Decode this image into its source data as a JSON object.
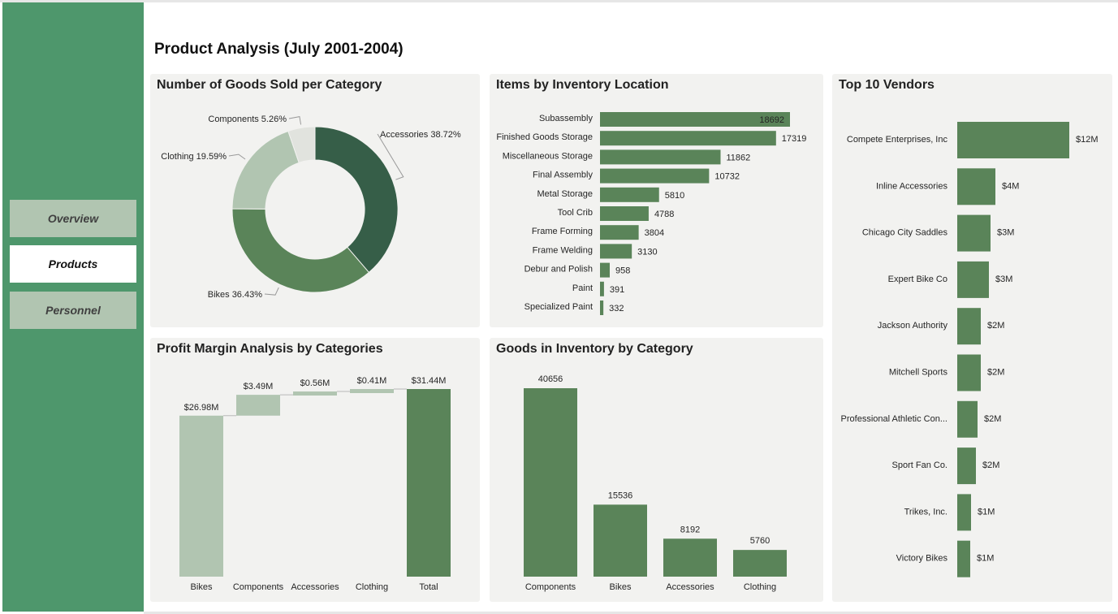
{
  "page": {
    "title": "Product Analysis (July 2001-2004)"
  },
  "nav": {
    "items": [
      {
        "label": "Overview",
        "active": false
      },
      {
        "label": "Products",
        "active": true
      },
      {
        "label": "Personnel",
        "active": false
      }
    ]
  },
  "colors": {
    "sidebar": "#4e976c",
    "bar": "#5a8459",
    "bar_light": "#b1c5b1",
    "donut_dark": "#365e48",
    "donut_mid": "#5a8459",
    "donut_light": "#b1c5b1",
    "donut_pale": "#e1e3de",
    "card_bg": "#f2f2f0"
  },
  "chart_data": [
    {
      "id": "goods_sold",
      "type": "pie",
      "title": "Number of Goods Sold per Category",
      "categories": [
        "Accessories",
        "Bikes",
        "Clothing",
        "Components"
      ],
      "values": [
        38.72,
        36.43,
        19.59,
        5.26
      ],
      "labels": [
        "Accessories 38.72%",
        "Bikes 36.43%",
        "Clothing 19.59%",
        "Components 5.26%"
      ]
    },
    {
      "id": "inventory_location",
      "type": "bar",
      "orientation": "horizontal",
      "title": "Items by Inventory Location",
      "categories": [
        "Subassembly",
        "Finished Goods Storage",
        "Miscellaneous Storage",
        "Final Assembly",
        "Metal Storage",
        "Tool Crib",
        "Frame Forming",
        "Frame Welding",
        "Debur and Polish",
        "Paint",
        "Specialized Paint"
      ],
      "values": [
        18692,
        17319,
        11862,
        10732,
        5810,
        4788,
        3804,
        3130,
        958,
        391,
        332
      ]
    },
    {
      "id": "top_vendors",
      "type": "bar",
      "orientation": "horizontal",
      "title": "Top 10 Vendors",
      "categories": [
        "Compete Enterprises, Inc",
        "Inline Accessories",
        "Chicago City Saddles",
        "Expert Bike Co",
        "Jackson Authority",
        "Mitchell Sports",
        "Professional Athletic Con...",
        "Sport Fan Co.",
        "Trikes, Inc.",
        "Victory Bikes"
      ],
      "values": [
        12,
        4,
        3,
        3,
        2,
        2,
        2,
        2,
        1,
        1
      ],
      "value_labels": [
        "$12M",
        "$4M",
        "$3M",
        "$3M",
        "$2M",
        "$2M",
        "$2M",
        "$2M",
        "$1M",
        "$1M"
      ]
    },
    {
      "id": "profit_margin",
      "type": "bar",
      "subtype": "waterfall",
      "title": "Profit Margin Analysis by Categories",
      "categories": [
        "Bikes",
        "Components",
        "Accessories",
        "Clothing",
        "Total"
      ],
      "values": [
        26.98,
        3.49,
        0.56,
        0.41,
        31.44
      ],
      "value_labels": [
        "$26.98M",
        "$3.49M",
        "$0.56M",
        "$0.41M",
        "$31.44M"
      ]
    },
    {
      "id": "goods_inventory",
      "type": "bar",
      "title": "Goods in Inventory by Category",
      "categories": [
        "Components",
        "Bikes",
        "Accessories",
        "Clothing"
      ],
      "values": [
        40656,
        15536,
        8192,
        5760
      ]
    }
  ]
}
